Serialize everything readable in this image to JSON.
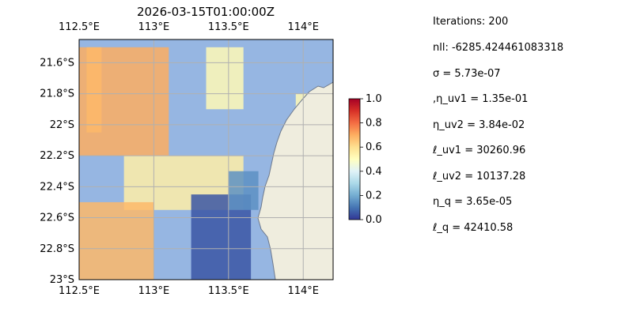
{
  "chart_data": [
    {
      "type": "heatmap",
      "title": "2026-03-15T01:00:00Z",
      "x_axis": {
        "range": [
          112.5,
          114.2
        ],
        "ticks": [
          112.5,
          113.0,
          113.5,
          114.0
        ],
        "tick_labels": [
          "112.5°E",
          "113°E",
          "113.5°E",
          "114°E"
        ],
        "position": "top and bottom"
      },
      "y_axis": {
        "range": [
          -23.0,
          -21.45
        ],
        "ticks": [
          -21.6,
          -21.8,
          -22.0,
          -22.2,
          -22.4,
          -22.6,
          -22.8,
          -23.0
        ],
        "tick_labels": [
          "21.6°S",
          "21.8°S",
          "22°S",
          "22.2°S",
          "22.4°S",
          "22.6°S",
          "22.8°S",
          "23°S"
        ]
      },
      "grid": true,
      "colormap": "RdYlBu_r",
      "ocean_color": "#96b6e2",
      "land_color": "#efedde",
      "colorbar": {
        "range": [
          0,
          1
        ],
        "ticks": [
          0.0,
          0.2,
          0.4,
          0.6,
          0.8,
          1.0
        ],
        "tick_labels": [
          "0.0",
          "0.2",
          "0.4",
          "0.6",
          "0.8",
          "1.0"
        ],
        "placement": "right"
      },
      "field_regions": [
        {
          "lon": [
            112.5,
            113.1
          ],
          "lat": [
            -22.2,
            -21.5
          ],
          "value": 0.7
        },
        {
          "lon": [
            112.55,
            112.65
          ],
          "lat": [
            -22.05,
            -21.5
          ],
          "value": 0.68
        },
        {
          "lon": [
            113.35,
            113.6
          ],
          "lat": [
            -21.9,
            -21.5
          ],
          "value": 0.52
        },
        {
          "lon": [
            112.8,
            113.6
          ],
          "lat": [
            -22.55,
            -22.2
          ],
          "value": 0.55
        },
        {
          "lon": [
            112.5,
            113.0
          ],
          "lat": [
            -23.0,
            -22.5
          ],
          "value": 0.68
        },
        {
          "lon": [
            113.25,
            113.65
          ],
          "lat": [
            -23.0,
            -22.45
          ],
          "value": 0.05
        },
        {
          "lon": [
            113.5,
            113.7
          ],
          "lat": [
            -22.55,
            -22.3
          ],
          "value": 0.15
        },
        {
          "lon": [
            113.95,
            114.05
          ],
          "lat": [
            -22.4,
            -21.8
          ],
          "value": 0.52
        }
      ]
    }
  ],
  "stats": [
    "Iterations: 200",
    "nll: -6285.424461083318",
    "σ = 5.73e-07",
    ",η_uv1 = 1.35e-01",
    "η_uv2 = 3.84e-02",
    "ℓ_uv1 = 30260.96",
    "ℓ_uv2 = 10137.28",
    "η_q = 3.65e-05",
    "ℓ_q = 42410.58"
  ]
}
